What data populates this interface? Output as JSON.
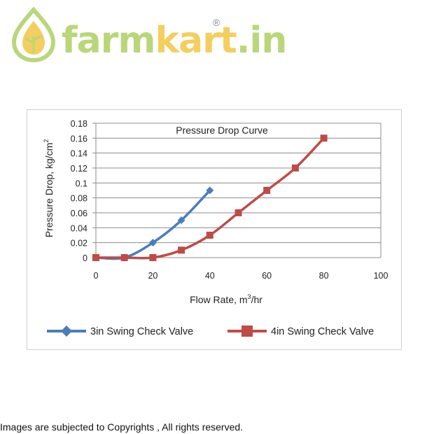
{
  "logo": {
    "part1": "farm",
    "part2": "kart",
    "part3": ".in",
    "registered": "®",
    "colors": {
      "green": "#b9d77a",
      "yellow": "#f4cf5f"
    }
  },
  "footer": {
    "text": "Images are subjected to Copyrights , All rights reserved."
  },
  "chart_data": {
    "type": "line",
    "title": "Pressure Drop Curve",
    "xlabel": "Flow Rate, m",
    "xlabel_sup": "3",
    "xlabel_suffix": "/hr",
    "ylabel": "Pressure Drop, kg/cm",
    "ylabel_sup": "2",
    "xlim": [
      0,
      100
    ],
    "ylim": [
      0,
      0.18
    ],
    "xticks": [
      "0",
      "20",
      "40",
      "60",
      "80",
      "100"
    ],
    "xtick_values": [
      0,
      20,
      40,
      60,
      80,
      100
    ],
    "yticks": [
      "0",
      "0.02",
      "0.04",
      "0.06",
      "0.08",
      "0.1",
      "0.12",
      "0.14",
      "0.16",
      "0.18"
    ],
    "ytick_values": [
      0,
      0.02,
      0.04,
      0.06,
      0.08,
      0.1,
      0.12,
      0.14,
      0.16,
      0.18
    ],
    "grid": true,
    "legend_position": "bottom",
    "series": [
      {
        "name": "3in Swing Check Valve",
        "color": "#4a7ebb",
        "marker": "diamond",
        "x": [
          0,
          10,
          20,
          30,
          40
        ],
        "y": [
          0,
          0,
          0.02,
          0.05,
          0.09
        ]
      },
      {
        "name": "4in Swing Check Valve",
        "color": "#be4b48",
        "marker": "square",
        "x": [
          0,
          10,
          20,
          30,
          40,
          50,
          60,
          70,
          80
        ],
        "y": [
          0,
          0,
          0,
          0.01,
          0.03,
          0.06,
          0.09,
          0.12,
          0.16
        ]
      }
    ]
  }
}
